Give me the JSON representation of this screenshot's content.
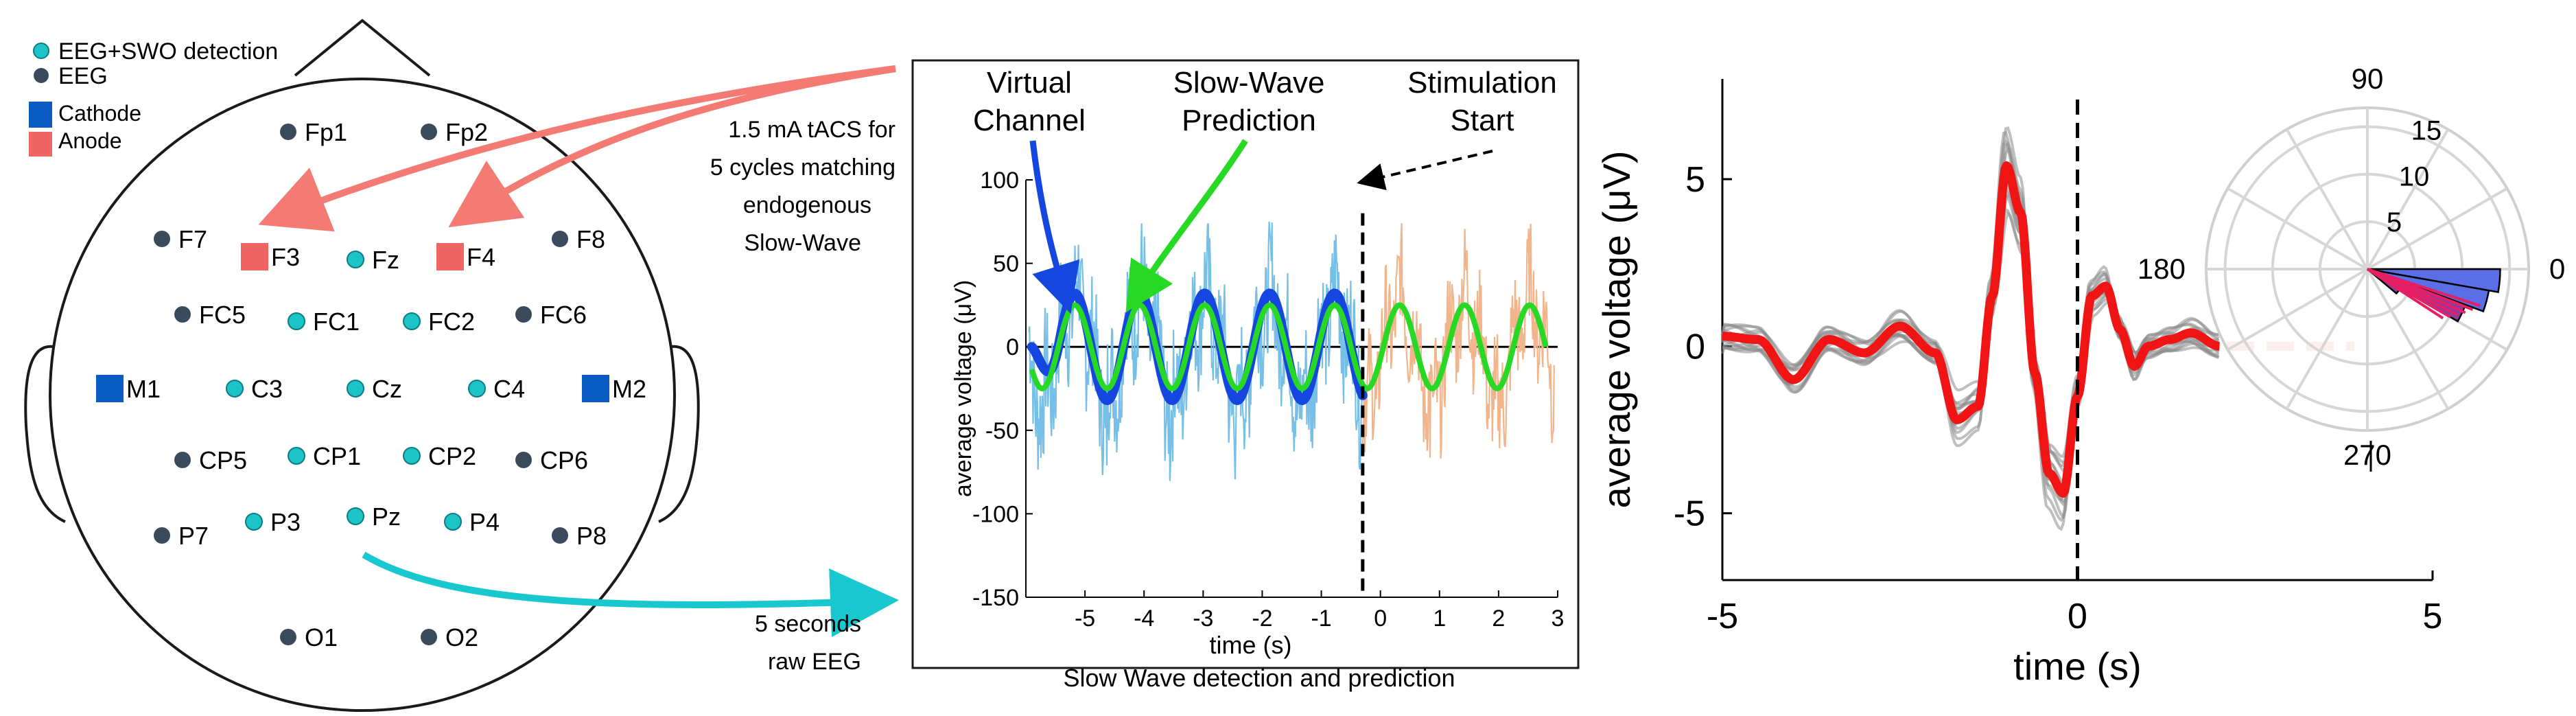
{
  "colors": {
    "detection_electrode": "#1cc4c8",
    "eeg_electrode": "#3b4a5a",
    "cathode": "#0a5bc4",
    "anode": "#f06464",
    "stim_arrow": "#f47a74",
    "raw_eeg_arrow": "#19c8cf",
    "virtual_channel": "#1546e0",
    "prediction": "#27d924",
    "raw_eeg_trace": "#76bfe6",
    "stim_trace": "#f2b48a",
    "erp_mean": "#f01414",
    "erp_trials": "#8a8a8a",
    "rose_fill": "#5a6ee6",
    "rose_highlight": "#e61e64"
  },
  "legend": {
    "detection": "EEG+SWO detection",
    "eeg": "EEG",
    "cathode": "Cathode",
    "anode": "Anode"
  },
  "electrodes": [
    {
      "label": "Fp1",
      "kind": "eeg"
    },
    {
      "label": "Fp2",
      "kind": "eeg"
    },
    {
      "label": "F7",
      "kind": "eeg"
    },
    {
      "label": "F3",
      "kind": "anode"
    },
    {
      "label": "Fz",
      "kind": "detection"
    },
    {
      "label": "F4",
      "kind": "anode"
    },
    {
      "label": "F8",
      "kind": "eeg"
    },
    {
      "label": "FC5",
      "kind": "eeg"
    },
    {
      "label": "FC1",
      "kind": "detection"
    },
    {
      "label": "FC2",
      "kind": "detection"
    },
    {
      "label": "FC6",
      "kind": "eeg"
    },
    {
      "label": "M1",
      "kind": "cathode"
    },
    {
      "label": "C3",
      "kind": "detection"
    },
    {
      "label": "Cz",
      "kind": "detection"
    },
    {
      "label": "C4",
      "kind": "detection"
    },
    {
      "label": "M2",
      "kind": "cathode"
    },
    {
      "label": "CP5",
      "kind": "eeg"
    },
    {
      "label": "CP1",
      "kind": "detection"
    },
    {
      "label": "CP2",
      "kind": "detection"
    },
    {
      "label": "CP6",
      "kind": "eeg"
    },
    {
      "label": "P7",
      "kind": "eeg"
    },
    {
      "label": "P3",
      "kind": "detection"
    },
    {
      "label": "Pz",
      "kind": "detection"
    },
    {
      "label": "P4",
      "kind": "detection"
    },
    {
      "label": "P8",
      "kind": "eeg"
    },
    {
      "label": "O1",
      "kind": "eeg"
    },
    {
      "label": "O2",
      "kind": "eeg"
    }
  ],
  "annotations": {
    "tacs_line1": "1.5 mA tACS for",
    "tacs_line2": "5 cycles matching",
    "tacs_line3": "endogenous",
    "tacs_line4": "Slow-Wave",
    "raw_line1": "5 seconds",
    "raw_line2": "raw EEG"
  },
  "middle_panel": {
    "label_virtual_1": "Virtual",
    "label_virtual_2": "Channel",
    "label_prediction_1": "Slow-Wave",
    "label_prediction_2": "Prediction",
    "label_stim_1": "Stimulation",
    "label_stim_2": "Start",
    "ylabel": "average voltage (μV)",
    "xlabel": "time (s)",
    "caption": "Slow Wave detection and prediction"
  },
  "chart_data": [
    {
      "type": "line",
      "xlim": [
        -6,
        3
      ],
      "ylim": [
        -150,
        100
      ],
      "x_ticks": [
        -5,
        -4,
        -3,
        -2,
        -1,
        0,
        1,
        2,
        3
      ],
      "y_ticks": [
        -150,
        -100,
        -50,
        0,
        50,
        100
      ],
      "xlabel": "time (s)",
      "ylabel": "average voltage (μV)",
      "stimulation_start": -0.3,
      "series": [
        {
          "name": "Virtual Channel",
          "period_s": 1.1,
          "amplitude": 32,
          "x_range": [
            -5.9,
            -0.3
          ]
        },
        {
          "name": "Slow-Wave Prediction",
          "period_s": 1.1,
          "amplitude": 25,
          "x_range": [
            -5.9,
            2.8
          ]
        }
      ],
      "grid": false
    },
    {
      "type": "line",
      "xlim": [
        -5,
        5
      ],
      "ylim": [
        -7,
        8
      ],
      "x_ticks": [
        -5,
        0,
        5
      ],
      "y_ticks": [
        -5,
        0,
        5
      ],
      "xlabel": "time (s)",
      "ylabel": "average voltage (μV)",
      "event_line": 0,
      "mean_series": {
        "x": [
          -5,
          -4.5,
          -4,
          -3.5,
          -3,
          -2.5,
          -2,
          -1.7,
          -1.4,
          -1.2,
          -1,
          -0.8,
          -0.6,
          -0.4,
          -0.2,
          0,
          0.2,
          0.4,
          0.6,
          0.8,
          1,
          1.3,
          1.6,
          2
        ],
        "y": [
          0.3,
          0.2,
          -1.0,
          0.2,
          -0.2,
          0.6,
          -0.2,
          -2.2,
          -1.8,
          1.5,
          5.4,
          4.0,
          -0.8,
          -3.8,
          -4.4,
          -1.5,
          1.5,
          1.8,
          0.5,
          -0.6,
          0.0,
          0.2,
          0.4,
          0.0
        ]
      },
      "trial_count": 14,
      "grid": false
    },
    {
      "type": "polar_histogram",
      "angle_ticks": [
        90,
        180,
        270,
        0
      ],
      "radial_ticks": [
        5,
        10,
        15
      ],
      "bins": [
        {
          "angle_deg": -5,
          "value": 14
        },
        {
          "angle_deg": -15,
          "value": 13
        },
        {
          "angle_deg": -25,
          "value": 11
        },
        {
          "angle_deg": -35,
          "value": 4
        }
      ],
      "grid": true
    }
  ]
}
